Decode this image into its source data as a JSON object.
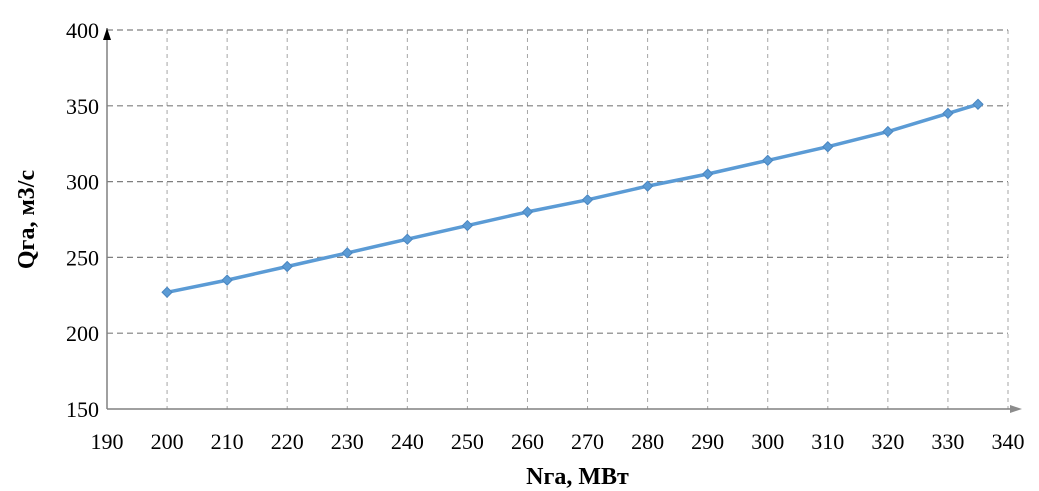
{
  "chart_data": {
    "type": "line",
    "title": "",
    "xlabel": "Nга, МВт",
    "ylabel": "Qга, м3/с",
    "xlim": [
      190,
      340
    ],
    "ylim": [
      150,
      400
    ],
    "x_ticks": [
      190,
      200,
      210,
      220,
      230,
      240,
      250,
      260,
      270,
      280,
      290,
      300,
      310,
      320,
      330,
      340
    ],
    "y_ticks": [
      150,
      200,
      250,
      300,
      350,
      400
    ],
    "grid": true,
    "legend": "none",
    "series": [
      {
        "color": "#5b9bd5",
        "marker": "diamond",
        "x": [
          200,
          210,
          220,
          230,
          240,
          250,
          260,
          270,
          280,
          290,
          300,
          310,
          320,
          330,
          335
        ],
        "y": [
          227,
          235,
          244,
          253,
          262,
          271,
          280,
          288,
          297,
          305,
          314,
          323,
          333,
          345,
          351
        ]
      }
    ]
  }
}
